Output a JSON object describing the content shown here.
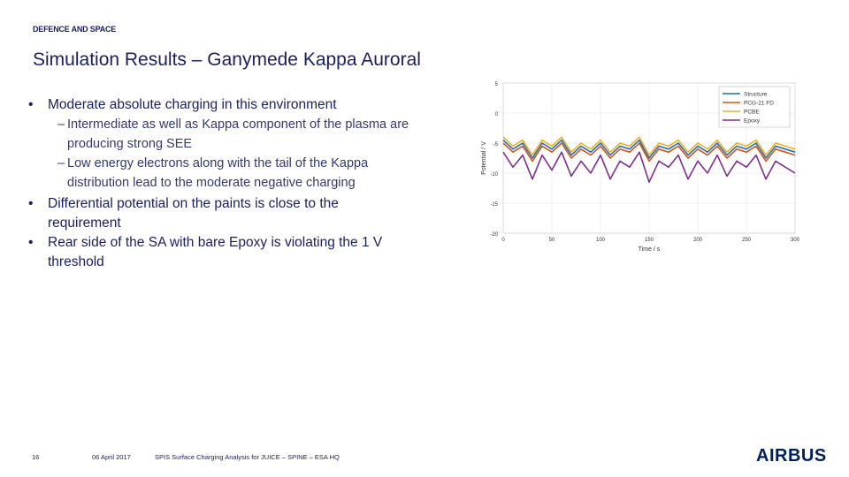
{
  "header": {
    "tag": "DEFENCE AND SPACE"
  },
  "title": "Simulation Results – Ganymede Kappa Auroral",
  "bullets": [
    {
      "text": "Moderate absolute charging in this environment",
      "sub": [
        {
          "line1": "Intermediate as well as Kappa component of the plasma are",
          "line2": "producing strong SEE"
        },
        {
          "line1": "Low energy electrons along with the tail of the Kappa",
          "line2": "distribution lead to the moderate negative charging"
        }
      ]
    },
    {
      "line1": "Differential potential on the paints is close to the",
      "line2": "requirement"
    },
    {
      "line1": "Rear side of the SA with bare Epoxy is violating the 1 V",
      "line2": "threshold"
    }
  ],
  "chart_data": {
    "type": "line",
    "title": "",
    "xlabel": "Time / s",
    "ylabel": "Potential / V",
    "xlim": [
      0,
      300
    ],
    "ylim": [
      -20,
      5
    ],
    "xticks": [
      "0",
      "50",
      "100",
      "150",
      "200",
      "250",
      "300"
    ],
    "yticks": [
      "5",
      "0",
      "-5",
      "-10",
      "-15",
      "-20"
    ],
    "legend": "top-right",
    "grid": true,
    "series": [
      {
        "name": "Structure",
        "color": "#1f6fb5",
        "x": [
          0,
          10,
          20,
          30,
          40,
          50,
          60,
          70,
          80,
          90,
          100,
          110,
          120,
          130,
          140,
          150,
          160,
          170,
          180,
          190,
          200,
          210,
          220,
          230,
          240,
          250,
          260,
          270,
          280,
          290,
          300
        ],
        "y": [
          -4.5,
          -6,
          -5,
          -7.5,
          -5,
          -6,
          -4.5,
          -7,
          -5.5,
          -6.5,
          -5,
          -7,
          -5.5,
          -6,
          -4.5,
          -7.5,
          -5.5,
          -6,
          -5,
          -7,
          -5.5,
          -6.5,
          -5,
          -7,
          -5.5,
          -6,
          -5,
          -7.5,
          -5.5,
          -6,
          -6.5
        ]
      },
      {
        "name": "PCG-21 FD",
        "color": "#d9541a",
        "x": [
          0,
          10,
          20,
          30,
          40,
          50,
          60,
          70,
          80,
          90,
          100,
          110,
          120,
          130,
          140,
          150,
          160,
          170,
          180,
          190,
          200,
          210,
          220,
          230,
          240,
          250,
          260,
          270,
          280,
          290,
          300
        ],
        "y": [
          -5,
          -6.5,
          -5.5,
          -8,
          -5.5,
          -6.5,
          -5,
          -7.5,
          -6,
          -7,
          -5.5,
          -7.5,
          -6,
          -6.5,
          -5,
          -8,
          -6,
          -6.5,
          -5.5,
          -7.5,
          -6,
          -7,
          -5.5,
          -7.5,
          -6,
          -6.5,
          -5.5,
          -8,
          -6,
          -6.5,
          -7
        ]
      },
      {
        "name": "PCBE",
        "color": "#edb120",
        "x": [
          0,
          10,
          20,
          30,
          40,
          50,
          60,
          70,
          80,
          90,
          100,
          110,
          120,
          130,
          140,
          150,
          160,
          170,
          180,
          190,
          200,
          210,
          220,
          230,
          240,
          250,
          260,
          270,
          280,
          290,
          300
        ],
        "y": [
          -4,
          -5.5,
          -4.5,
          -7,
          -4.5,
          -5.5,
          -4,
          -6.5,
          -5,
          -6,
          -4.5,
          -6.5,
          -5,
          -5.5,
          -4,
          -7,
          -5,
          -5.5,
          -4.5,
          -6.5,
          -5,
          -6,
          -4.5,
          -6.5,
          -5,
          -5.5,
          -4.5,
          -7,
          -5,
          -5.5,
          -6
        ]
      },
      {
        "name": "Epoxy",
        "color": "#7e2f8e",
        "x": [
          0,
          10,
          20,
          30,
          40,
          50,
          60,
          70,
          80,
          90,
          100,
          110,
          120,
          130,
          140,
          150,
          160,
          170,
          180,
          190,
          200,
          210,
          220,
          230,
          240,
          250,
          260,
          270,
          280,
          290,
          300
        ],
        "y": [
          -6.5,
          -9,
          -7,
          -11,
          -7,
          -9.5,
          -6.5,
          -10.5,
          -8,
          -10,
          -7,
          -11,
          -8,
          -9,
          -6.5,
          -11.5,
          -8,
          -9,
          -7,
          -11,
          -8,
          -10,
          -7,
          -10.5,
          -8,
          -9,
          -7,
          -11,
          -8,
          -9,
          -10
        ]
      }
    ]
  },
  "footer": {
    "page": "16",
    "date": "06 April 2017",
    "doc": "SPIS Surface Charging Analysis for JUICE – SPINE – ESA HQ"
  },
  "logo": "AIRBUS"
}
